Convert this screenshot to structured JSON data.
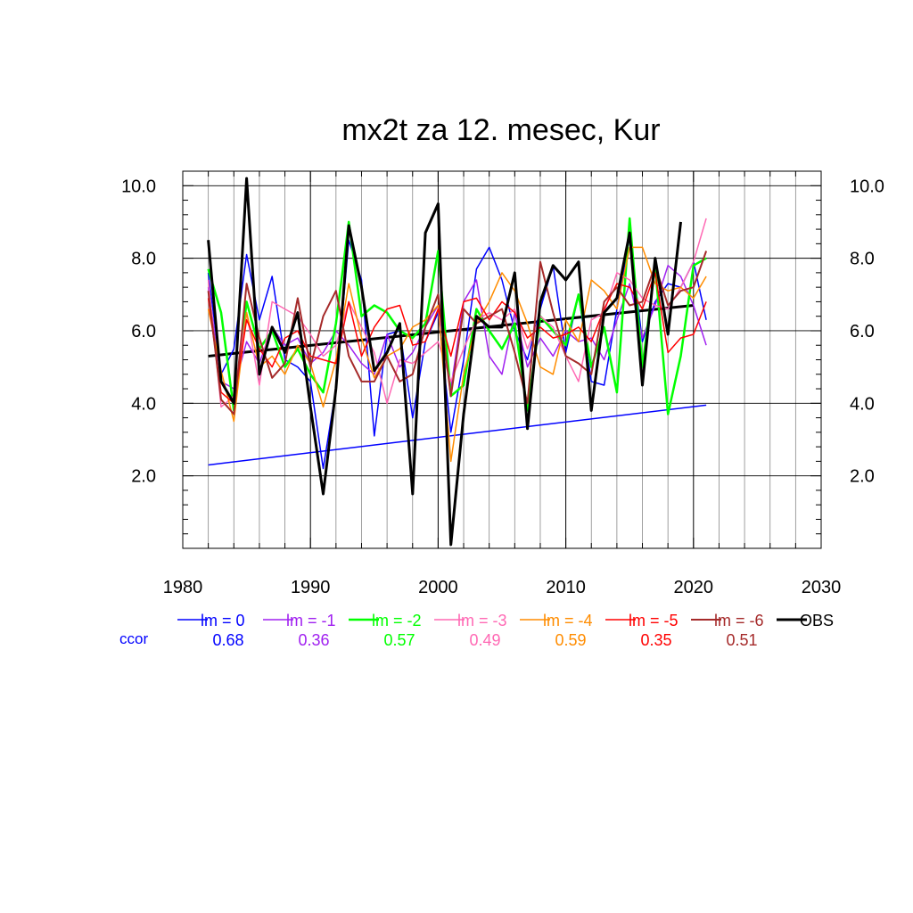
{
  "chart_data": {
    "type": "line",
    "title": "mx2t za 12. mesec, Kur",
    "xlabel": "",
    "ylabel": "",
    "xlim": [
      1980,
      2030
    ],
    "ylim": [
      0,
      10.4
    ],
    "x_ticks": [
      1980,
      1990,
      2000,
      2010,
      2020,
      2030
    ],
    "x_tick_labels": [
      "1980",
      "1990",
      "2000",
      "2010",
      "2020",
      "2030"
    ],
    "y_ticks": [
      2,
      4,
      6,
      8,
      10
    ],
    "y_tick_labels": [
      "2.0",
      "4.0",
      "6.0",
      "8.0",
      "10.0"
    ],
    "grid": true,
    "legend_position": "bottom",
    "correlation_label": "ccor",
    "x": [
      1982,
      1983,
      1984,
      1985,
      1986,
      1987,
      1988,
      1989,
      1990,
      1991,
      1992,
      1993,
      1994,
      1995,
      1996,
      1997,
      1998,
      1999,
      2000,
      2001,
      2002,
      2003,
      2004,
      2005,
      2006,
      2007,
      2008,
      2009,
      2010,
      2011,
      2012,
      2013,
      2014,
      2015,
      2016,
      2017,
      2018,
      2019,
      2020,
      2021
    ],
    "series": [
      {
        "name": "lm = 0",
        "ccor": "0.68",
        "color": "#0000ff",
        "width": 1.5,
        "values": [
          7.6,
          4.8,
          5.5,
          8.1,
          6.3,
          7.5,
          5.2,
          5.0,
          4.6,
          2.2,
          4.4,
          8.5,
          7.4,
          3.1,
          5.9,
          6.0,
          3.6,
          5.7,
          6.5,
          3.2,
          5.2,
          7.7,
          8.3,
          7.4,
          6.0,
          5.2,
          6.6,
          7.8,
          5.4,
          7.0,
          4.6,
          4.5,
          6.6,
          8.6,
          5.7,
          6.8,
          7.3,
          7.2,
          7.9,
          6.3
        ]
      },
      {
        "name": "lm = -1",
        "ccor": "0.36",
        "color": "#a020f0",
        "width": 1.5,
        "values": [
          7.2,
          4.6,
          4.4,
          5.7,
          5.1,
          6.1,
          5.6,
          5.8,
          5.1,
          5.4,
          6.0,
          5.6,
          5.1,
          4.8,
          5.9,
          5.0,
          5.4,
          6.1,
          6.7,
          4.4,
          6.8,
          7.4,
          5.3,
          4.8,
          6.5,
          5.0,
          5.8,
          5.3,
          6.0,
          5.7,
          5.8,
          5.2,
          6.3,
          7.3,
          5.8,
          6.7,
          7.8,
          7.5,
          6.7,
          5.6
        ]
      },
      {
        "name": "lm = -2",
        "ccor": "0.57",
        "color": "#00ff00",
        "width": 2.5,
        "values": [
          7.7,
          6.5,
          3.8,
          6.8,
          5.5,
          6.0,
          5.0,
          5.5,
          4.8,
          4.3,
          6.2,
          9.0,
          6.4,
          6.7,
          6.5,
          6.0,
          5.8,
          6.2,
          8.2,
          4.2,
          4.5,
          6.6,
          6.0,
          5.5,
          6.2,
          3.8,
          6.4,
          6.0,
          5.6,
          7.0,
          5.0,
          6.1,
          4.3,
          9.1,
          5.0,
          7.8,
          3.7,
          5.3,
          7.8,
          8.0
        ]
      },
      {
        "name": "lm = -3",
        "ccor": "0.49",
        "color": "#ff69b4",
        "width": 1.5,
        "values": [
          7.4,
          3.9,
          4.2,
          6.5,
          4.5,
          6.8,
          6.6,
          6.4,
          5.9,
          5.3,
          5.6,
          6.8,
          6.1,
          5.4,
          4.0,
          5.2,
          5.1,
          5.4,
          5.7,
          4.6,
          5.5,
          6.3,
          6.5,
          6.3,
          6.6,
          5.5,
          6.4,
          6.1,
          5.3,
          4.6,
          6.3,
          6.5,
          7.6,
          7.4,
          6.9,
          6.7,
          6.6,
          7.2,
          7.9,
          9.1
        ]
      },
      {
        "name": "lm = -4",
        "ccor": "0.59",
        "color": "#ff8c00",
        "width": 1.5,
        "values": [
          6.6,
          4.9,
          3.5,
          6.5,
          5.0,
          5.3,
          4.8,
          5.6,
          5.1,
          3.9,
          5.2,
          7.3,
          5.8,
          4.7,
          5.3,
          5.5,
          6.1,
          6.3,
          6.7,
          2.4,
          4.8,
          6.2,
          6.8,
          7.6,
          7.1,
          6.2,
          5.0,
          4.8,
          6.3,
          5.7,
          7.4,
          7.1,
          6.6,
          8.3,
          8.3,
          7.3,
          7.1,
          7.2,
          6.9,
          7.5
        ]
      },
      {
        "name": "lm = -5",
        "ccor": "0.35",
        "color": "#ff0000",
        "width": 1.5,
        "values": [
          6.9,
          4.3,
          4.0,
          6.3,
          5.5,
          5.0,
          5.8,
          6.0,
          5.3,
          5.2,
          5.1,
          6.8,
          5.3,
          6.1,
          6.6,
          6.7,
          5.6,
          5.7,
          6.6,
          5.3,
          6.8,
          6.9,
          6.3,
          6.8,
          6.5,
          5.8,
          6.1,
          5.8,
          5.9,
          6.1,
          5.7,
          6.6,
          7.3,
          7.2,
          6.6,
          7.6,
          5.4,
          5.8,
          5.9,
          6.8
        ]
      },
      {
        "name": "lm = -6",
        "ccor": "0.51",
        "color": "#a52a2a",
        "width": 2.0,
        "values": [
          7.1,
          4.1,
          3.7,
          7.3,
          5.8,
          4.7,
          5.1,
          6.9,
          5.0,
          6.4,
          7.1,
          5.3,
          4.6,
          4.6,
          5.3,
          4.6,
          4.8,
          6.1,
          7.0,
          4.2,
          6.6,
          6.2,
          6.4,
          6.6,
          5.4,
          4.0,
          7.9,
          6.5,
          5.3,
          5.1,
          4.8,
          6.8,
          7.2,
          6.7,
          6.8,
          7.8,
          6.7,
          7.1,
          7.2,
          8.2
        ]
      },
      {
        "name": "OBS",
        "ccor": "",
        "color": "#000000",
        "width": 3.0,
        "values": [
          8.5,
          4.6,
          4.0,
          10.2,
          4.8,
          6.1,
          5.4,
          6.5,
          3.9,
          1.5,
          4.4,
          8.9,
          7.2,
          4.9,
          5.4,
          6.2,
          1.5,
          8.7,
          9.5,
          0.1,
          3.7,
          6.4,
          6.1,
          6.1,
          7.6,
          3.3,
          6.8,
          7.8,
          7.4,
          7.9,
          3.8,
          6.5,
          6.9,
          8.7,
          4.5,
          8.0,
          5.9,
          9.0,
          null,
          null
        ]
      }
    ],
    "trend_lines": [
      {
        "name": "OBS trend",
        "color": "#000000",
        "width": 3.0,
        "x": [
          1982,
          2020
        ],
        "y": [
          5.3,
          6.7
        ]
      },
      {
        "name": "lm = 0 trend",
        "color": "#0000ff",
        "width": 1.5,
        "x": [
          1982,
          2021
        ],
        "y": [
          2.3,
          3.95
        ]
      }
    ]
  }
}
